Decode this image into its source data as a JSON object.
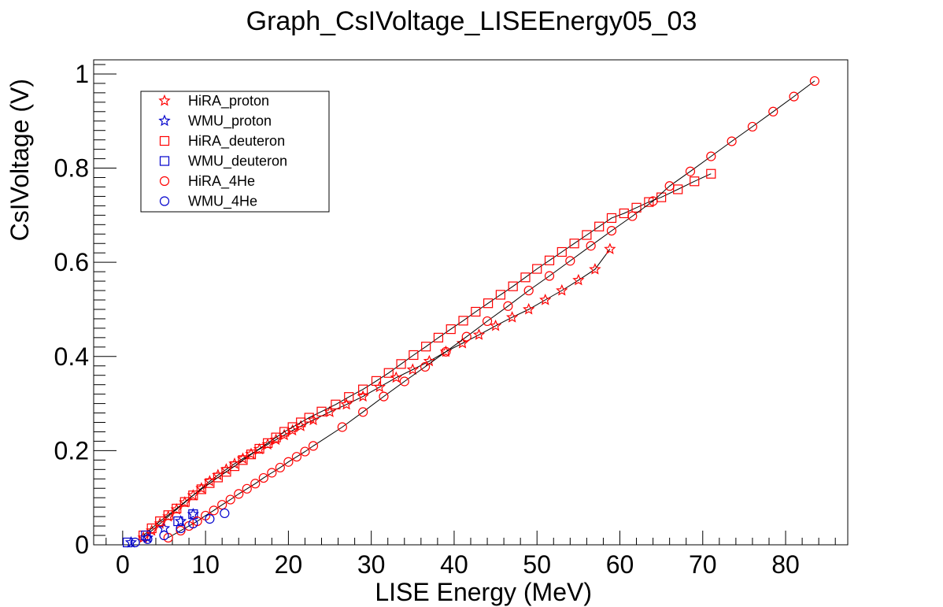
{
  "chart_data": {
    "type": "scatter",
    "title": "Graph_CsIVoltage_LISEEnergy05_03",
    "xlabel": "LISE Energy (MeV)",
    "ylabel": "CsIVoltage (V)",
    "xlim": [
      -3.5,
      87.5
    ],
    "ylim": [
      0,
      1.03
    ],
    "x_ticks": [
      "0",
      "10",
      "20",
      "30",
      "40",
      "50",
      "60",
      "70",
      "80"
    ],
    "y_ticks": [
      "0",
      "0.2",
      "0.4",
      "0.6",
      "0.8",
      "1"
    ],
    "legend_position": "top-left",
    "grid": false,
    "series": [
      {
        "name": "HiRA_proton",
        "color": "#ff0000",
        "marker": "star",
        "line": true,
        "x": [
          2.5,
          3.5,
          4.5,
          5.5,
          6.5,
          7.5,
          8.5,
          9.5,
          10.5,
          11.5,
          12.5,
          13.5,
          14.5,
          15.5,
          16.5,
          17.5,
          18.5,
          19.5,
          20.5,
          21.5,
          23.0,
          25.0,
          27.0,
          29.0,
          31.0,
          33.0,
          35.0,
          37.0,
          39.0,
          41.0,
          43.0,
          45.0,
          47.0,
          49.0,
          51.0,
          53.0,
          55.0,
          57.0,
          58.8
        ],
        "y": [
          0.015,
          0.03,
          0.045,
          0.06,
          0.075,
          0.09,
          0.105,
          0.12,
          0.135,
          0.148,
          0.16,
          0.172,
          0.183,
          0.193,
          0.203,
          0.213,
          0.223,
          0.233,
          0.243,
          0.252,
          0.265,
          0.282,
          0.298,
          0.315,
          0.335,
          0.355,
          0.372,
          0.39,
          0.41,
          0.428,
          0.446,
          0.465,
          0.483,
          0.5,
          0.52,
          0.54,
          0.562,
          0.585,
          0.628
        ]
      },
      {
        "name": "WMU_proton",
        "color": "#0000cc",
        "marker": "star",
        "line": false,
        "x": [
          1.0,
          3.0,
          5.0,
          7.0,
          8.5
        ],
        "y": [
          0.005,
          0.015,
          0.035,
          0.05,
          0.065
        ]
      },
      {
        "name": "HiRA_deuteron",
        "color": "#ff0000",
        "marker": "square",
        "line": true,
        "x": [
          2.5,
          3.5,
          4.5,
          5.5,
          6.5,
          7.5,
          8.5,
          9.5,
          10.5,
          11.5,
          12.5,
          13.5,
          14.5,
          15.5,
          16.5,
          17.5,
          18.5,
          19.5,
          20.5,
          21.5,
          22.5,
          24.0,
          25.7,
          27.3,
          29.0,
          30.6,
          32.1,
          33.6,
          35.1,
          36.6,
          38.1,
          39.6,
          41.1,
          42.6,
          44.1,
          45.6,
          47.1,
          48.6,
          50.0,
          51.5,
          53.0,
          54.5,
          56.0,
          57.5,
          59.0,
          60.5,
          62.0,
          63.5,
          65.0,
          67.0,
          69.0,
          71.0
        ],
        "y": [
          0.02,
          0.035,
          0.05,
          0.063,
          0.077,
          0.091,
          0.105,
          0.118,
          0.131,
          0.143,
          0.155,
          0.167,
          0.18,
          0.192,
          0.204,
          0.216,
          0.228,
          0.24,
          0.25,
          0.26,
          0.27,
          0.283,
          0.298,
          0.314,
          0.33,
          0.348,
          0.365,
          0.384,
          0.403,
          0.421,
          0.44,
          0.458,
          0.476,
          0.495,
          0.513,
          0.531,
          0.549,
          0.568,
          0.586,
          0.604,
          0.622,
          0.64,
          0.658,
          0.676,
          0.694,
          0.704,
          0.716,
          0.728,
          0.738,
          0.755,
          0.772,
          0.788
        ]
      },
      {
        "name": "WMU_deuteron",
        "color": "#0000cc",
        "marker": "square",
        "line": false,
        "x": [
          0.6,
          2.8,
          6.7,
          8.5
        ],
        "y": [
          0.005,
          0.02,
          0.05,
          0.065
        ]
      },
      {
        "name": "HiRA_4He",
        "color": "#ff0000",
        "marker": "circle",
        "line": true,
        "x": [
          5.5,
          7.0,
          8.0,
          9.0,
          10.0,
          11.0,
          12.0,
          13.0,
          14.0,
          15.0,
          16.0,
          17.0,
          18.0,
          19.0,
          20.0,
          21.0,
          22.0,
          23.0,
          26.5,
          29.0,
          31.5,
          34.0,
          36.5,
          39.0,
          41.5,
          44.0,
          46.5,
          49.0,
          51.5,
          54.0,
          56.5,
          59.0,
          61.5,
          64.0,
          66.0,
          68.5,
          71.0,
          73.5,
          76.0,
          78.5,
          81.0,
          83.5
        ],
        "y": [
          0.015,
          0.03,
          0.04,
          0.05,
          0.062,
          0.073,
          0.085,
          0.096,
          0.108,
          0.119,
          0.13,
          0.142,
          0.153,
          0.164,
          0.176,
          0.187,
          0.198,
          0.21,
          0.25,
          0.282,
          0.315,
          0.347,
          0.378,
          0.41,
          0.442,
          0.475,
          0.507,
          0.54,
          0.571,
          0.603,
          0.635,
          0.667,
          0.698,
          0.73,
          0.762,
          0.793,
          0.825,
          0.857,
          0.888,
          0.92,
          0.952,
          0.985
        ]
      },
      {
        "name": "WMU_4He",
        "color": "#0000cc",
        "marker": "circle",
        "line": false,
        "x": [
          1.5,
          3.0,
          5.0,
          7.0,
          8.5,
          10.5,
          12.3
        ],
        "y": [
          0.005,
          0.012,
          0.02,
          0.035,
          0.045,
          0.055,
          0.067
        ]
      }
    ]
  }
}
